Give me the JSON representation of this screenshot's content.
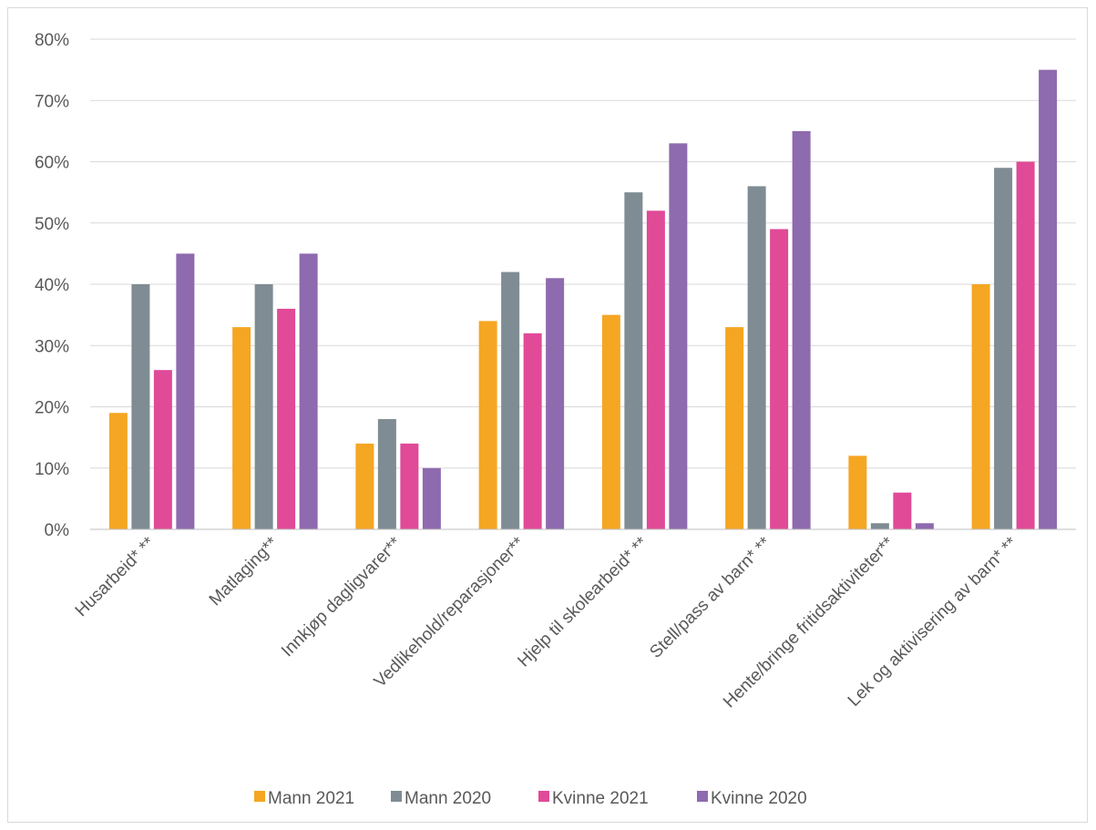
{
  "chart_data": {
    "type": "bar",
    "title": "",
    "xlabel": "",
    "ylabel": "",
    "ylim": [
      0,
      80
    ],
    "y_ticks": [
      0,
      10,
      20,
      30,
      40,
      50,
      60,
      70,
      80
    ],
    "y_tick_labels": [
      "0%",
      "10%",
      "20%",
      "30%",
      "40%",
      "50%",
      "60%",
      "70%",
      "80%"
    ],
    "grid": true,
    "legend_position": "bottom",
    "categories": [
      "Husarbeid* **",
      "Matlaging**",
      "Innkjøp dagligvarer**",
      "Vedlikehold/reparasjoner**",
      "Hjelp til skolearbeid* **",
      "Stell/pass av barn* **",
      "Hente/bringe fritidsaktiviteter**",
      "Lek og aktivisering av barn* **"
    ],
    "series": [
      {
        "name": "Mann 2021",
        "color": "#f5a623",
        "values": [
          19,
          33,
          14,
          34,
          35,
          33,
          12,
          40
        ]
      },
      {
        "name": "Mann 2020",
        "color": "#7f8c93",
        "values": [
          40,
          40,
          18,
          42,
          55,
          56,
          1,
          59
        ]
      },
      {
        "name": "Kvinne 2021",
        "color": "#e04a97",
        "values": [
          26,
          36,
          14,
          32,
          52,
          49,
          6,
          60
        ]
      },
      {
        "name": "Kvinne 2020",
        "color": "#8e6aae",
        "values": [
          45,
          45,
          10,
          41,
          63,
          65,
          1,
          75
        ]
      }
    ]
  }
}
